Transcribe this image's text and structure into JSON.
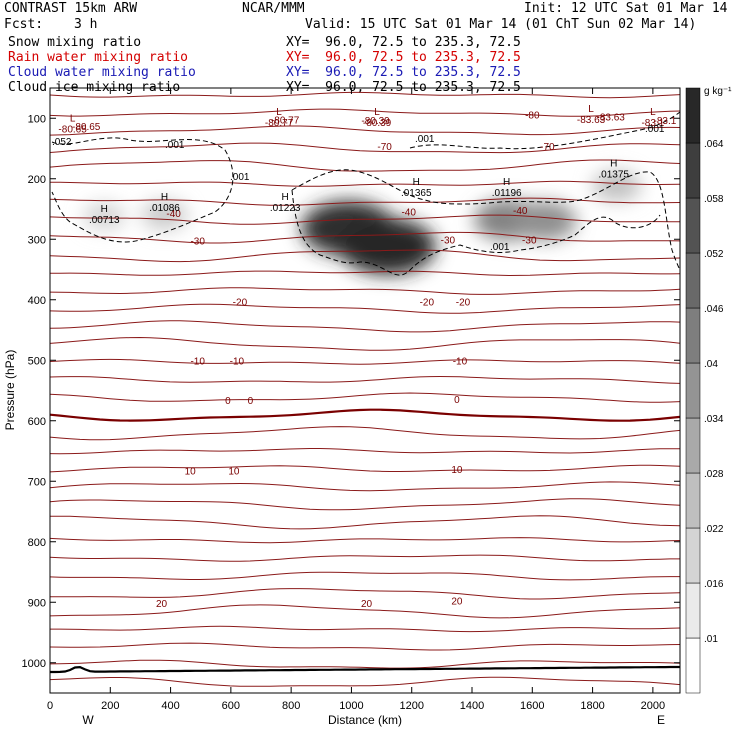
{
  "header": {
    "model": "CONTRAST 15km ARW",
    "org": "NCAR/MMM",
    "init": "Init: 12 UTC Sat 01 Mar 14",
    "fcst_label": "Fcst:",
    "fcst_value": "3 h",
    "valid": "Valid: 15 UTC Sat 01 Mar 14 (01 ChT Sun 02 Mar 14)",
    "fields": [
      {
        "name": "Snow mixing ratio",
        "xy": "XY=  96.0, 72.5 to 235.3, 72.5",
        "color": "#000000"
      },
      {
        "name": "Rain water mixing ratio",
        "xy": "XY=  96.0, 72.5 to 235.3, 72.5",
        "color": "#d40000"
      },
      {
        "name": "Cloud water mixing ratio",
        "xy": "XY=  96.0, 72.5 to 235.3, 72.5",
        "color": "#1a1ab4"
      },
      {
        "name": "Cloud ice mixing ratio",
        "xy": "XY=  96.0, 72.5 to 235.3, 72.5",
        "color": "#000000"
      }
    ]
  },
  "chart_data": {
    "type": "heatmap",
    "title": "Cross section XY= 96.0, 72.5 to 235.3, 72.5",
    "xlabel": "Distance (km)",
    "ylabel": "Pressure (hPa)",
    "xlim": [
      0,
      2090
    ],
    "ylim": [
      1050,
      50
    ],
    "xticks": [
      0,
      200,
      400,
      600,
      800,
      1000,
      1200,
      1400,
      1600,
      1800,
      2000
    ],
    "yticks": [
      100,
      200,
      300,
      400,
      500,
      600,
      700,
      800,
      900,
      1000
    ],
    "x_end_labels": {
      "left": "W",
      "right": "E"
    },
    "colorbar": {
      "unit": "g kg⁻¹",
      "levels": [
        0.01,
        0.016,
        0.022,
        0.028,
        0.034,
        0.04,
        0.046,
        0.052,
        0.058,
        0.064
      ],
      "labels": [
        ".01",
        ".016",
        ".022",
        ".028",
        ".034",
        ".04",
        ".046",
        ".052",
        ".058",
        ".064"
      ]
    },
    "temperature_contour_labels": [
      {
        "text": "-80.65",
        "x": 120,
        "p": 113
      },
      {
        "text": "-80.77",
        "x": 780,
        "p": 102
      },
      {
        "text": "-80.39",
        "x": 1080,
        "p": 103
      },
      {
        "text": "-83.63",
        "x": 1860,
        "p": 97
      },
      {
        "text": "-83.1",
        "x": 2040,
        "p": 103
      },
      {
        "text": "-80",
        "x": 1600,
        "p": 94
      },
      {
        "text": "-70",
        "x": 1110,
        "p": 146
      },
      {
        "text": "-70",
        "x": 1650,
        "p": 146
      },
      {
        "text": "-40",
        "x": 410,
        "p": 257
      },
      {
        "text": "-40",
        "x": 1190,
        "p": 254
      },
      {
        "text": "-40",
        "x": 1560,
        "p": 252
      },
      {
        "text": "-30",
        "x": 490,
        "p": 302
      },
      {
        "text": "-30",
        "x": 1320,
        "p": 300
      },
      {
        "text": "-30",
        "x": 1590,
        "p": 300
      },
      {
        "text": "-20",
        "x": 630,
        "p": 403
      },
      {
        "text": "-20",
        "x": 1250,
        "p": 403
      },
      {
        "text": "-20",
        "x": 1370,
        "p": 403
      },
      {
        "text": "-10",
        "x": 490,
        "p": 500
      },
      {
        "text": "-10",
        "x": 620,
        "p": 500
      },
      {
        "text": "-10",
        "x": 1360,
        "p": 500
      },
      {
        "text": "0",
        "x": 590,
        "p": 566
      },
      {
        "text": "0",
        "x": 665,
        "p": 566
      },
      {
        "text": "0",
        "x": 1350,
        "p": 564
      },
      {
        "text": "10",
        "x": 465,
        "p": 682
      },
      {
        "text": "10",
        "x": 610,
        "p": 682
      },
      {
        "text": "10",
        "x": 1350,
        "p": 680
      },
      {
        "text": "20",
        "x": 370,
        "p": 901
      },
      {
        "text": "20",
        "x": 1050,
        "p": 901
      },
      {
        "text": "20",
        "x": 1350,
        "p": 897
      }
    ],
    "max_min_labels": [
      {
        "type": "L",
        "text": "-80.65",
        "x": 75,
        "p": 105
      },
      {
        "type": "L",
        "text": "-80.77",
        "x": 760,
        "p": 95
      },
      {
        "type": "L",
        "text": "-80.39",
        "x": 1085,
        "p": 95
      },
      {
        "type": "L",
        "text": "-83.63",
        "x": 1795,
        "p": 90
      },
      {
        "type": "L",
        "text": "-83.1",
        "x": 2000,
        "p": 95
      },
      {
        "type": "H",
        "text": ".00713",
        "x": 180,
        "p": 255
      },
      {
        "type": "H",
        "text": ".01086",
        "x": 380,
        "p": 235
      },
      {
        "type": "H",
        "text": ".01223",
        "x": 780,
        "p": 235
      },
      {
        "type": "H",
        "text": ".01365",
        "x": 1215,
        "p": 210
      },
      {
        "type": "H",
        "text": ".01196",
        "x": 1515,
        "p": 210
      },
      {
        "type": "H",
        "text": ".01375",
        "x": 1870,
        "p": 180
      }
    ],
    "cloud_ice_contour": {
      "level": 0.001,
      "labels": [
        ".052",
        ".001",
        ".001",
        ".001",
        ".001",
        ".001"
      ]
    },
    "snow_maxima": [
      {
        "x": 180,
        "p": 262,
        "value": 0.00713
      },
      {
        "x": 380,
        "p": 260,
        "value": 0.01086
      },
      {
        "x": 990,
        "p": 282,
        "value": 0.0617
      },
      {
        "x": 1120,
        "p": 312,
        "value": 0.0645
      },
      {
        "x": 1520,
        "p": 268,
        "value": 0.0345
      },
      {
        "x": 1640,
        "p": 270,
        "value": 0.0302
      },
      {
        "x": 1880,
        "p": 212,
        "value": 0.01375
      }
    ]
  }
}
